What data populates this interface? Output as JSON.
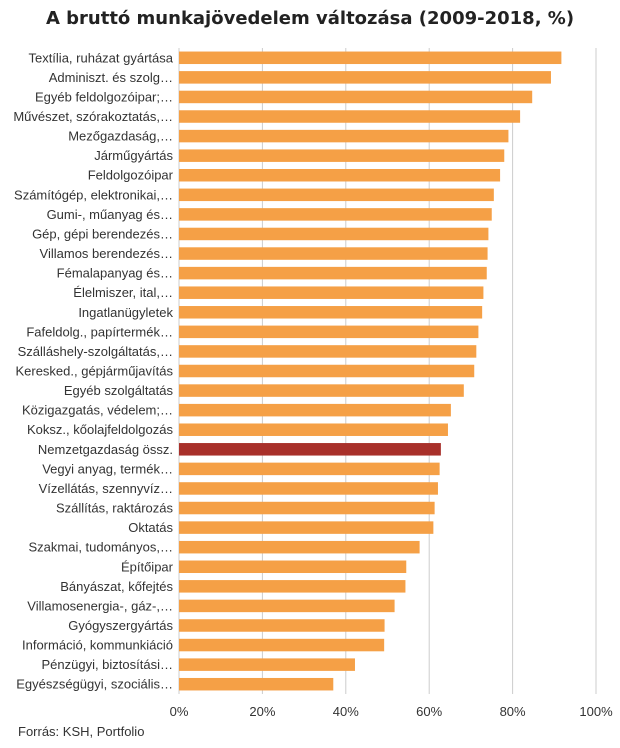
{
  "chart_data": {
    "type": "bar",
    "orientation": "horizontal",
    "title": "A bruttó munkajövedelem változása (2009-2018, %)",
    "source": "Forrás: KSH, Portfolio",
    "categories": [
      "Textília, ruházat gyártása",
      "Adminiszt. és szolg…",
      "Egyéb feldolgozóipar;…",
      "Művészet, szórakoztatás,…",
      "Mezőgazdaság,…",
      "Járműgyártás",
      "Feldolgozóipar",
      "Számítógép, elektronikai,…",
      "Gumi-, műanyag és…",
      "Gép, gépi berendezés…",
      "Villamos berendezés…",
      "Fémalapanyag és…",
      "Élelmiszer, ital,…",
      "Ingatlanügyletek",
      "Fafeldolg., papírtermék…",
      "Szálláshely-szolgáltatás,…",
      "Keresked., gépjárműjavítás",
      "Egyéb szolgáltatás",
      "Közigazgatás, védelem;…",
      "Koksz., kőolajfeldolgozás",
      "Nemzetgazdaság össz.",
      "Vegyi anyag, termék…",
      "Vízellátás, szennyvíz…",
      "Szállítás, raktározás",
      "Oktatás",
      "Szakmai, tudományos,…",
      "Építőipar",
      "Bányászat, kőfejtés",
      "Villamosenergia-, gáz-,…",
      "Gyógyszergyártás",
      "Információ, kommunkiáció",
      "Pénzügyi, biztosítási…",
      "Egyészségügyi, szociális…"
    ],
    "values": [
      91.7,
      89.2,
      84.7,
      81.8,
      79.0,
      78.0,
      77.0,
      75.5,
      75.0,
      74.2,
      74.0,
      73.8,
      73.0,
      72.7,
      71.8,
      71.3,
      70.8,
      68.3,
      65.2,
      64.5,
      62.8,
      62.5,
      62.1,
      61.3,
      61.0,
      57.7,
      54.5,
      54.3,
      51.7,
      49.3,
      49.2,
      42.2,
      37.0
    ],
    "highlight": "Nemzetgazdaság össz.",
    "xlim": [
      0,
      100
    ],
    "xticks": [
      0,
      20,
      40,
      60,
      80,
      100
    ],
    "tick_suffix": "%",
    "xlabel": "",
    "ylabel": "",
    "grid": true,
    "colors": {
      "bar": "#F5A046",
      "highlight": "#A8302A",
      "grid": "#cccccc"
    }
  }
}
